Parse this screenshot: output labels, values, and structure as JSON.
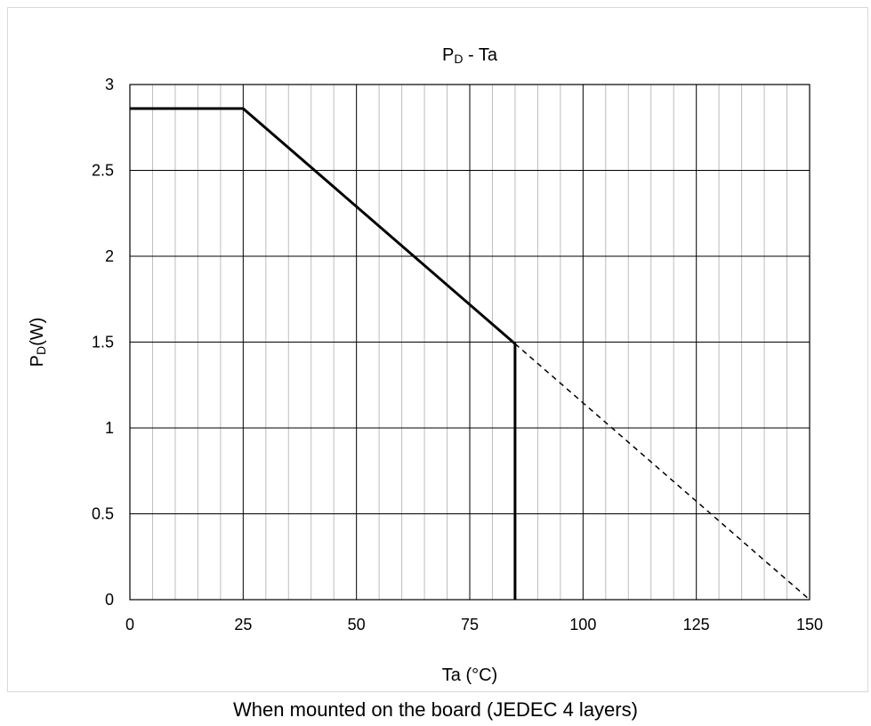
{
  "chart_data": {
    "type": "line",
    "title": {
      "main": "P",
      "sub": "D",
      "rest": " - Ta"
    },
    "xlabel": "Ta (°C)",
    "ylabel": {
      "main": "P",
      "sub": "D",
      "rest": "(W)"
    },
    "xlim": [
      0,
      150
    ],
    "ylim": [
      0,
      3
    ],
    "x_ticks": [
      0,
      25,
      50,
      75,
      100,
      125,
      150
    ],
    "x_minor_step": 5,
    "y_ticks": [
      0,
      0.5,
      1,
      1.5,
      2,
      2.5,
      3
    ],
    "y_tick_labels": [
      "0",
      "0.5",
      "1",
      "1.5",
      "2",
      "2.5",
      "3"
    ],
    "grid": true,
    "series": [
      {
        "style": "solid",
        "color": "#000000",
        "points": [
          [
            0,
            2.86
          ],
          [
            25,
            2.86
          ],
          [
            85,
            1.49
          ],
          [
            85,
            0
          ]
        ]
      },
      {
        "style": "dashed",
        "color": "#000000",
        "points": [
          [
            85,
            1.49
          ],
          [
            150,
            0
          ]
        ]
      }
    ]
  },
  "caption": "When mounted on the board (JEDEC 4 layers)"
}
